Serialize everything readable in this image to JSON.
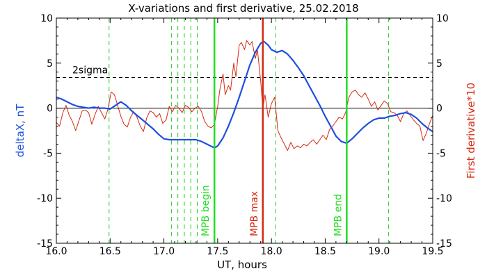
{
  "chart_data": {
    "type": "line",
    "title": "X-variations and first derivative, 25.02.2018",
    "xlabel": "UT, hours",
    "ylabel_left": "deltaX, nT",
    "ylabel_right": "First derivative*10",
    "xlim": [
      16.0,
      19.5
    ],
    "ylim": [
      -15,
      10
    ],
    "x_ticks": [
      "16.0",
      "16.5",
      "17.0",
      "17.5",
      "18.0",
      "18.5",
      "19.0",
      "19.5"
    ],
    "y_ticks": [
      "-15",
      "-10",
      "-5",
      "0",
      "5",
      "10"
    ],
    "series": [
      {
        "name": "deltaX",
        "color": "#1f4fe0",
        "x": [
          16.0,
          16.05,
          16.1,
          16.15,
          16.2,
          16.25,
          16.3,
          16.35,
          16.4,
          16.45,
          16.5,
          16.55,
          16.6,
          16.65,
          16.7,
          16.75,
          16.8,
          16.85,
          16.9,
          16.95,
          17.0,
          17.05,
          17.1,
          17.15,
          17.2,
          17.25,
          17.3,
          17.35,
          17.4,
          17.45,
          17.47,
          17.5,
          17.55,
          17.6,
          17.65,
          17.7,
          17.75,
          17.8,
          17.85,
          17.9,
          17.93,
          17.97,
          18.0,
          18.05,
          18.1,
          18.15,
          18.2,
          18.25,
          18.3,
          18.35,
          18.4,
          18.45,
          18.5,
          18.55,
          18.6,
          18.65,
          18.7,
          18.75,
          18.8,
          18.85,
          18.9,
          18.95,
          19.0,
          19.05,
          19.1,
          19.15,
          19.2,
          19.25,
          19.3,
          19.35,
          19.4,
          19.45,
          19.5
        ],
        "y": [
          1.2,
          1.0,
          0.7,
          0.4,
          0.2,
          0.1,
          0.0,
          0.1,
          0.0,
          0.0,
          -0.1,
          0.3,
          0.7,
          0.3,
          -0.3,
          -0.8,
          -1.3,
          -1.8,
          -2.3,
          -2.9,
          -3.4,
          -3.5,
          -3.5,
          -3.5,
          -3.5,
          -3.5,
          -3.5,
          -3.7,
          -4.0,
          -4.3,
          -4.4,
          -4.2,
          -3.3,
          -2.0,
          -0.5,
          1.2,
          3.0,
          4.8,
          6.2,
          7.2,
          7.4,
          7.0,
          6.5,
          6.2,
          6.4,
          6.0,
          5.3,
          4.5,
          3.6,
          2.5,
          1.4,
          0.3,
          -0.9,
          -2.0,
          -3.1,
          -3.7,
          -3.9,
          -3.4,
          -2.8,
          -2.2,
          -1.7,
          -1.3,
          -1.1,
          -1.1,
          -0.9,
          -0.8,
          -0.6,
          -0.5,
          -0.7,
          -1.1,
          -1.7,
          -2.2,
          -2.6
        ]
      },
      {
        "name": "First derivative*10",
        "color": "#d42a10",
        "x": [
          16.0,
          16.03,
          16.06,
          16.09,
          16.12,
          16.15,
          16.18,
          16.21,
          16.24,
          16.27,
          16.3,
          16.33,
          16.36,
          16.39,
          16.42,
          16.45,
          16.48,
          16.51,
          16.54,
          16.57,
          16.6,
          16.63,
          16.66,
          16.69,
          16.72,
          16.75,
          16.78,
          16.81,
          16.84,
          16.87,
          16.9,
          16.93,
          16.96,
          16.99,
          17.02,
          17.05,
          17.08,
          17.11,
          17.14,
          17.17,
          17.2,
          17.23,
          17.26,
          17.29,
          17.32,
          17.35,
          17.38,
          17.41,
          17.44,
          17.47,
          17.5,
          17.52,
          17.55,
          17.57,
          17.6,
          17.62,
          17.65,
          17.67,
          17.7,
          17.72,
          17.75,
          17.77,
          17.8,
          17.82,
          17.85,
          17.87,
          17.9,
          17.92,
          17.94,
          17.97,
          18.0,
          18.03,
          18.06,
          18.09,
          18.12,
          18.15,
          18.18,
          18.21,
          18.24,
          18.27,
          18.3,
          18.33,
          18.36,
          18.39,
          18.42,
          18.45,
          18.48,
          18.51,
          18.54,
          18.57,
          18.6,
          18.63,
          18.66,
          18.69,
          18.72,
          18.75,
          18.78,
          18.81,
          18.84,
          18.87,
          18.9,
          18.93,
          18.96,
          18.99,
          19.02,
          19.05,
          19.08,
          19.11,
          19.14,
          19.17,
          19.2,
          19.23,
          19.26,
          19.29,
          19.32,
          19.35,
          19.38,
          19.41,
          19.44,
          19.47,
          19.5
        ],
        "y": [
          -1.6,
          -2.0,
          -0.5,
          0.3,
          -0.8,
          -1.5,
          -2.5,
          -1.4,
          -0.3,
          -0.2,
          -0.5,
          -1.8,
          -0.7,
          0.2,
          -0.5,
          -1.2,
          -0.1,
          1.8,
          1.5,
          0.3,
          -0.9,
          -1.8,
          -2.1,
          -1.0,
          -0.4,
          -1.0,
          -2.0,
          -2.6,
          -1.1,
          -0.3,
          -0.5,
          -1.0,
          -0.6,
          -1.7,
          -1.3,
          0.2,
          -0.4,
          0.3,
          0.0,
          -0.5,
          0.3,
          0.1,
          -0.4,
          0.0,
          0.2,
          -0.4,
          -1.5,
          -2.0,
          -2.2,
          -1.8,
          0.2,
          2.0,
          3.8,
          1.5,
          2.5,
          2.0,
          5.0,
          3.5,
          7.0,
          7.3,
          6.5,
          7.5,
          7.0,
          7.4,
          5.5,
          6.5,
          3.0,
          0.0,
          1.5,
          -1.0,
          0.5,
          1.2,
          -2.5,
          -3.3,
          -4.0,
          -4.7,
          -3.8,
          -4.5,
          -4.2,
          -4.4,
          -4.0,
          -4.2,
          -3.8,
          -3.5,
          -4.0,
          -3.5,
          -3.0,
          -3.5,
          -2.4,
          -2.0,
          -1.5,
          -1.0,
          -1.2,
          -0.5,
          1.2,
          1.8,
          2.0,
          1.5,
          1.2,
          1.7,
          1.0,
          0.2,
          0.7,
          -0.2,
          0.3,
          0.8,
          0.5,
          -0.4,
          -0.5,
          -0.8,
          -1.5,
          -0.6,
          -0.3,
          -0.8,
          -1.3,
          -1.7,
          -2.0,
          -3.6,
          -2.8,
          -1.7,
          -0.8
        ]
      }
    ],
    "sigma": {
      "label": "2sigma",
      "value": 3.4
    },
    "thresholds": [
      {
        "label": "2sigma",
        "value": 3.4
      },
      {
        "value": 0
      }
    ],
    "event_lines": [
      {
        "label": "MPB begin",
        "x": 17.47,
        "color": "#22dd22"
      },
      {
        "label": "MPB max",
        "x": 17.92,
        "color": "#d42a10"
      },
      {
        "label": "MPB end",
        "x": 18.7,
        "color": "#22dd22"
      }
    ],
    "dashed_markers": {
      "color": "#22cc22",
      "x": [
        16.49,
        17.07,
        17.13,
        17.19,
        17.25,
        17.31,
        18.04,
        19.09
      ]
    }
  }
}
